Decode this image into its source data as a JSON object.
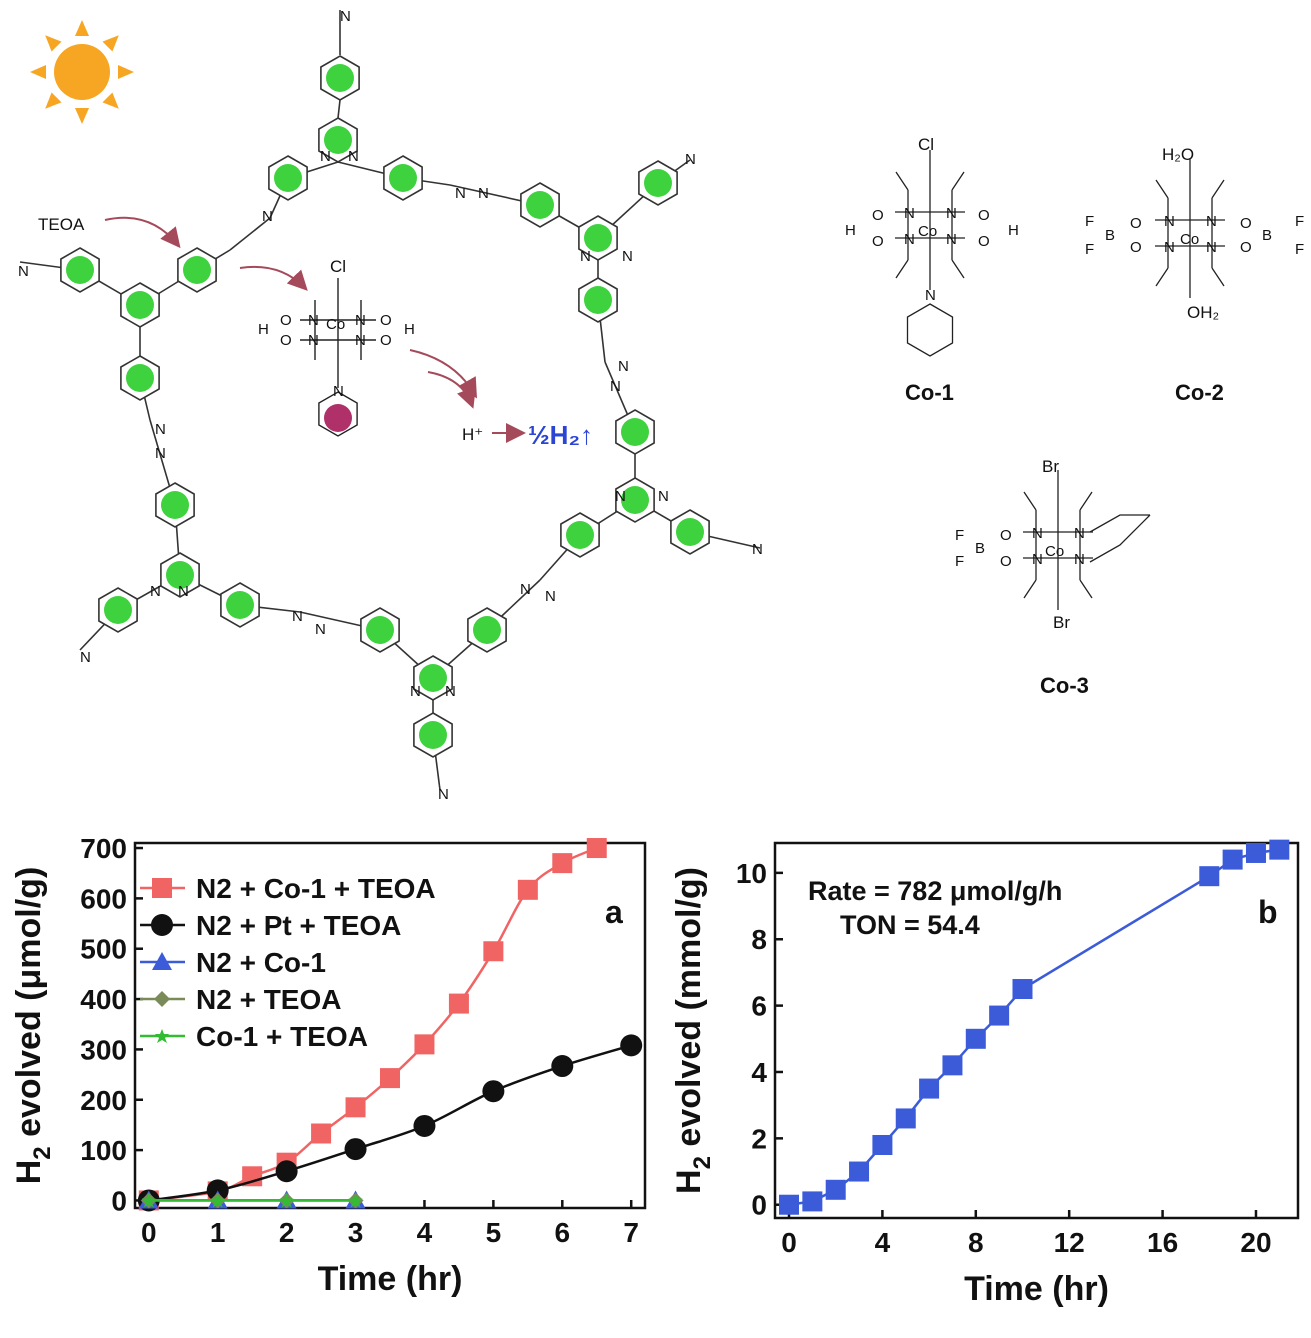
{
  "scheme": {
    "teoa_label": "TEOA",
    "proton_label": "H⁺",
    "h2_label": "½H₂↑",
    "catalysts": [
      {
        "name": "Co-1",
        "axial_top": "Cl",
        "metal": "Co"
      },
      {
        "name": "Co-2",
        "axial_top": "H₂O",
        "axial_bottom": "OH₂",
        "metal": "Co"
      },
      {
        "name": "Co-3",
        "axial_top": "Br",
        "axial_bottom": "Br",
        "metal": "Co"
      }
    ],
    "atom_labels": {
      "nitrogen": "N",
      "oxygen": "O",
      "hydrogen": "H",
      "boron": "B",
      "fluorine": "F",
      "imine": "N",
      "azine": "N",
      "hydroxy_left": "H",
      "hydroxy_right": "H"
    }
  },
  "chart_data": [
    {
      "type": "line",
      "panel_label": "a",
      "xlabel": "Time (hr)",
      "ylabel_main": "H",
      "ylabel_sub": "2",
      "ylabel_rest": " evolved (μmol/g)",
      "xlim": [
        -0.2,
        7.2
      ],
      "ylim": [
        -15,
        710
      ],
      "x_ticks": [
        "0",
        "1",
        "2",
        "3",
        "4",
        "5",
        "6",
        "7"
      ],
      "y_ticks": [
        "0",
        "100",
        "200",
        "300",
        "400",
        "500",
        "600",
        "700"
      ],
      "legend_position": "top-left",
      "series": [
        {
          "name": "N2 + Co-1 + TEOA",
          "color": "#f06464",
          "marker": "square",
          "x": [
            0,
            1,
            1.5,
            2,
            2.5,
            3,
            3.5,
            4,
            4.5,
            5,
            5.5,
            6,
            6.5
          ],
          "y": [
            0,
            18,
            48,
            75,
            133,
            185,
            243,
            310,
            391,
            495,
            617,
            670,
            700
          ]
        },
        {
          "name": "N2 + Pt + TEOA",
          "color": "#111111",
          "marker": "circle",
          "x": [
            0,
            1,
            2,
            3,
            4,
            5,
            6,
            7
          ],
          "y": [
            0,
            20,
            58,
            102,
            148,
            217,
            267,
            308
          ]
        },
        {
          "name": "N2 + Co-1",
          "color": "#3b5bd9",
          "marker": "triangle",
          "x": [
            0,
            1,
            2,
            3
          ],
          "y": [
            0,
            0,
            0,
            0
          ]
        },
        {
          "name": "N2 + TEOA",
          "color": "#7a8a58",
          "marker": "diamond",
          "x": [
            0,
            1,
            2,
            3
          ],
          "y": [
            0,
            0,
            0,
            0
          ]
        },
        {
          "name": "Co-1 + TEOA",
          "color": "#33bb33",
          "marker": "star",
          "x": [
            0,
            1,
            2,
            3
          ],
          "y": [
            0,
            0,
            0,
            0
          ]
        }
      ]
    },
    {
      "type": "line",
      "panel_label": "b",
      "xlabel": "Time (hr)",
      "ylabel_main": "H",
      "ylabel_sub": "2",
      "ylabel_rest": " evolved (mmol/g)",
      "xlim": [
        -0.6,
        21.8
      ],
      "ylim": [
        -0.4,
        10.9
      ],
      "x_ticks": [
        "0",
        "4",
        "8",
        "12",
        "16",
        "20"
      ],
      "y_ticks": [
        "0",
        "2",
        "4",
        "6",
        "8",
        "10"
      ],
      "annotations": [
        "Rate = 782 μmol/g/h",
        "TON = 54.4"
      ],
      "series": [
        {
          "color": "#3b5bd9",
          "marker": "square",
          "x": [
            0,
            1,
            2,
            3,
            4,
            5,
            6,
            7,
            8,
            9,
            10,
            18,
            19,
            20,
            21
          ],
          "y": [
            0.0,
            0.1,
            0.45,
            1.0,
            1.8,
            2.6,
            3.5,
            4.2,
            5.0,
            5.7,
            6.5,
            9.9,
            10.4,
            10.6,
            10.7
          ]
        }
      ]
    }
  ],
  "colors": {
    "sun": "#f7a623",
    "framework_ring": "#3fd23f",
    "pyridine_dot": "#b0306a",
    "arrow": "#a54a5a",
    "h2_text": "#2b44d4"
  }
}
